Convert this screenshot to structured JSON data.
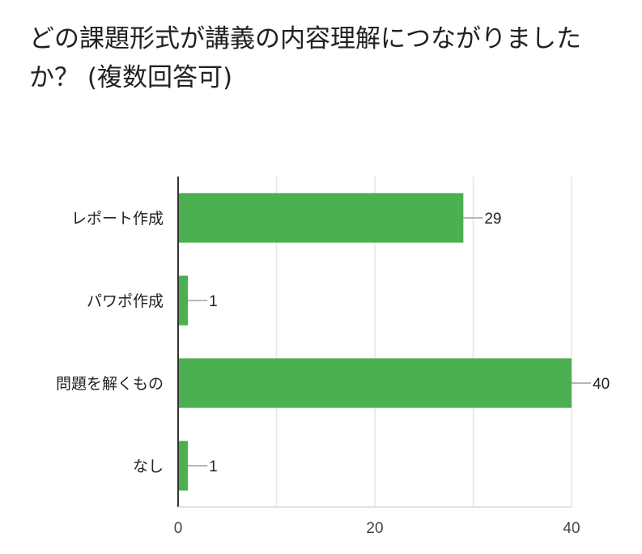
{
  "question_title": "どの課題形式が講義の内容理解につながりましたか？ (複数回答可)",
  "chart_data": {
    "type": "bar",
    "orientation": "horizontal",
    "categories": [
      "レポート作成",
      "パワポ作成",
      "問題を解くもの",
      "なし"
    ],
    "values": [
      29,
      1,
      40,
      1
    ],
    "xlim": [
      0,
      40
    ],
    "xticks": [
      0,
      20,
      40
    ],
    "grid": true,
    "bar_color": "#4caf50",
    "title": "",
    "xlabel": "",
    "ylabel": ""
  }
}
